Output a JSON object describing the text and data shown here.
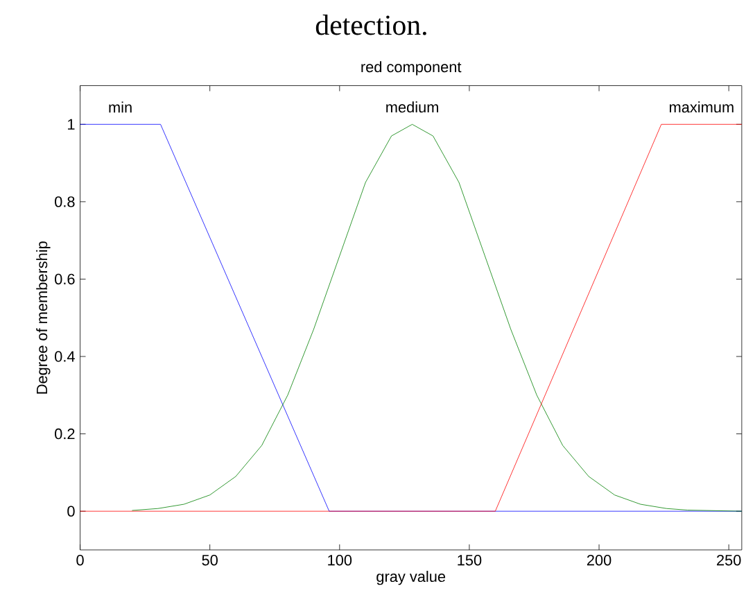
{
  "chart_data": {
    "type": "line",
    "title": "red component",
    "xlabel": "gray value",
    "ylabel": "Degree of membership",
    "annotations": [
      "detection."
    ],
    "xlim": [
      0,
      255
    ],
    "ylim": [
      -0.1,
      1.1
    ],
    "xticks": [
      0,
      50,
      100,
      150,
      200,
      250
    ],
    "yticks": [
      0,
      0.2,
      0.4,
      0.6,
      0.8,
      1
    ],
    "grid": false,
    "legend": false,
    "marker": "none",
    "line_style": "solid",
    "series": [
      {
        "name": "min",
        "color": "#0000ff",
        "x": [
          0,
          31,
          96,
          255
        ],
        "values": [
          1,
          1,
          0,
          0
        ]
      },
      {
        "name": "medium",
        "color": "#008000",
        "x": [
          20,
          30,
          40,
          50,
          60,
          70,
          80,
          90,
          100,
          110,
          120,
          128,
          136,
          146,
          156,
          166,
          176,
          186,
          196,
          206,
          216,
          226,
          234,
          255
        ],
        "values": [
          0.002,
          0.007,
          0.018,
          0.042,
          0.09,
          0.17,
          0.3,
          0.47,
          0.66,
          0.85,
          0.97,
          1,
          0.97,
          0.85,
          0.66,
          0.47,
          0.3,
          0.17,
          0.09,
          0.042,
          0.018,
          0.007,
          0.003,
          0
        ]
      },
      {
        "name": "maximum",
        "color": "#ff0000",
        "x": [
          0,
          160,
          224,
          255
        ],
        "values": [
          0,
          0,
          1,
          1
        ]
      }
    ]
  }
}
